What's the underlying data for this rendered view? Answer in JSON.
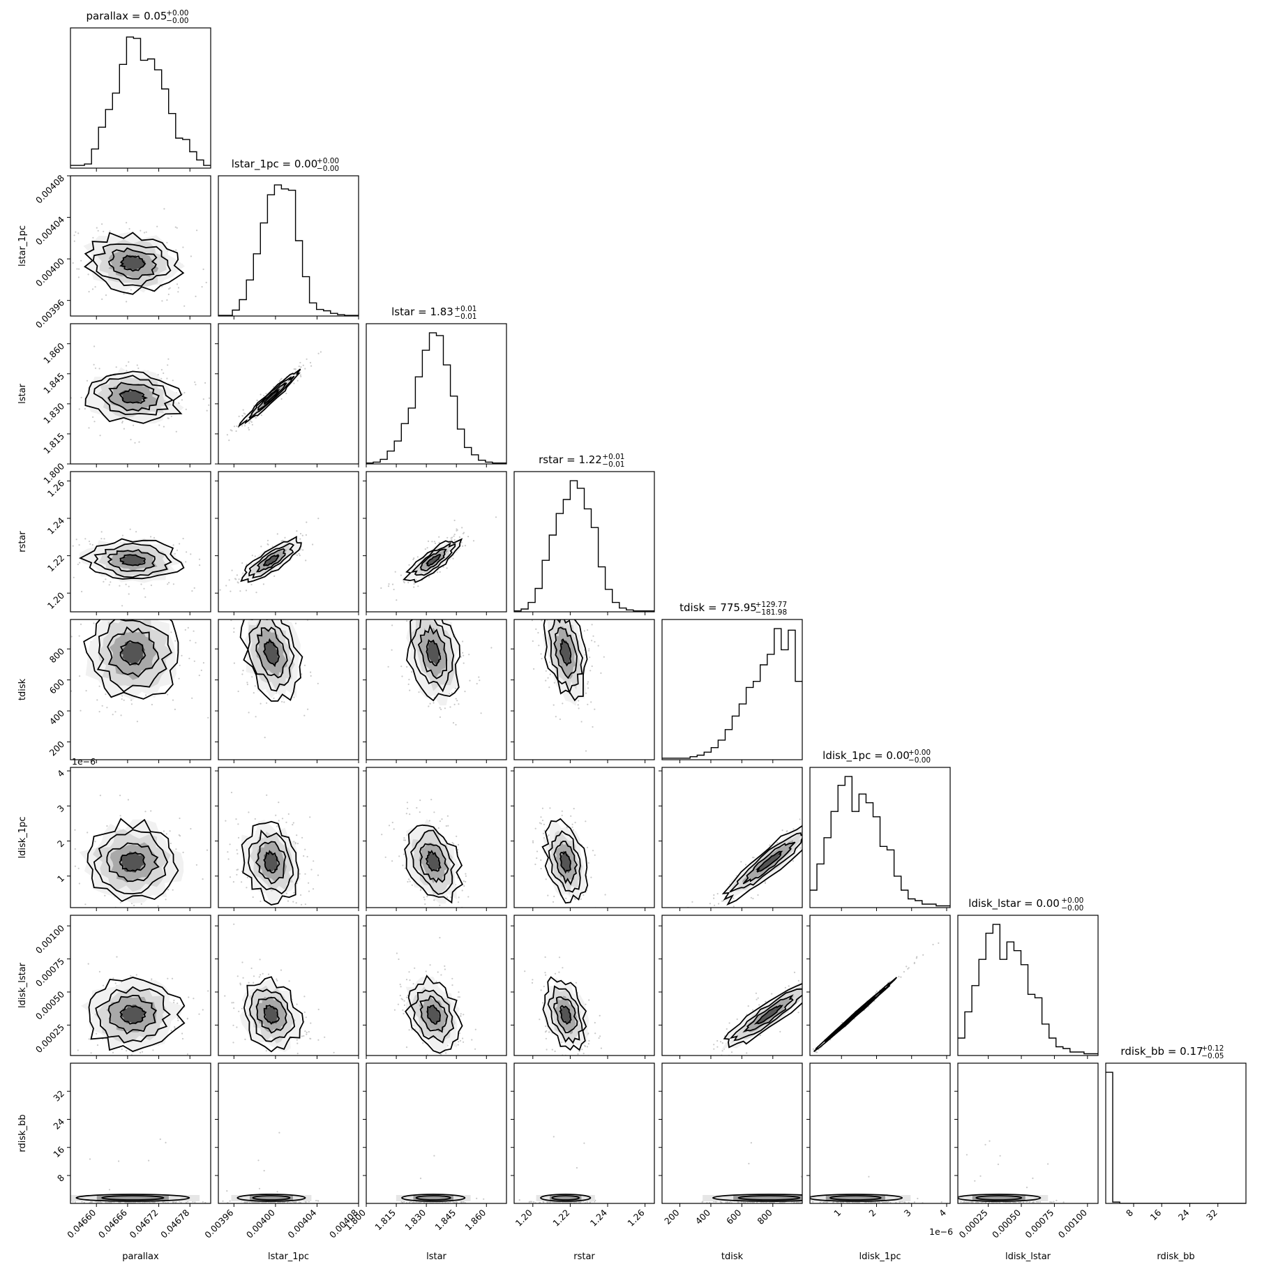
{
  "chart_data": {
    "type": "corner",
    "variables": [
      {
        "name": "parallax",
        "median": 0.04667,
        "sigma": 4.5e-05,
        "range": [
          0.04655,
          0.04682
        ],
        "ticks": [
          0.0466,
          0.04666,
          0.04672,
          0.04678
        ],
        "tick_labels": [
          "0.04660",
          "0.04666",
          "0.04672",
          "0.04678"
        ],
        "title": "parallax = 0.05",
        "title_plus": "+0.00",
        "title_minus": "−0.00",
        "offset_label": ""
      },
      {
        "name": "lstar_1pc",
        "median": 0.003996,
        "sigma": 1.35e-05,
        "range": [
          0.003945,
          0.00408
        ],
        "ticks": [
          0.00396,
          0.004,
          0.00404,
          0.00408
        ],
        "tick_labels": [
          "0.00396",
          "0.00400",
          "0.00404",
          "0.00408"
        ],
        "title": "lstar_1pc = 0.00",
        "title_plus": "+0.00",
        "title_minus": "−0.00",
        "offset_label": ""
      },
      {
        "name": "lstar",
        "median": 1.8335,
        "sigma": 0.0065,
        "range": [
          1.8,
          1.87
        ],
        "ticks": [
          1.8,
          1.815,
          1.83,
          1.845,
          1.86
        ],
        "tick_labels": [
          "1.800",
          "1.815",
          "1.830",
          "1.845",
          "1.860"
        ],
        "title": "lstar = 1.83",
        "title_plus": "+0.01",
        "title_minus": "−0.01",
        "offset_label": ""
      },
      {
        "name": "rstar",
        "median": 1.2175,
        "sigma": 0.0055,
        "range": [
          1.19,
          1.265
        ],
        "ticks": [
          1.2,
          1.22,
          1.24,
          1.26
        ],
        "tick_labels": [
          "1.20",
          "1.22",
          "1.24",
          "1.26"
        ],
        "title": "rstar = 1.22",
        "title_plus": "+0.01",
        "title_minus": "−0.01",
        "offset_label": ""
      },
      {
        "name": "tdisk",
        "median": 775.95,
        "sigma": 150,
        "range": [
          85,
          990
        ],
        "ticks": [
          200,
          400,
          600,
          800
        ],
        "tick_labels": [
          "200",
          "400",
          "600",
          "800"
        ],
        "title": "tdisk = 775.95",
        "title_plus": "+129.77",
        "title_minus": "−181.98",
        "offset_label": ""
      },
      {
        "name": "ldisk_1pc",
        "median": 1.4e-06,
        "sigma": 5.5e-07,
        "range": [
          1e-07,
          4.1e-06
        ],
        "ticks": [
          1e-06,
          2e-06,
          3e-06,
          4e-06
        ],
        "tick_labels": [
          "1",
          "2",
          "3",
          "4"
        ],
        "title": "ldisk_1pc = 0.00",
        "title_plus": "+0.00",
        "title_minus": "−0.00",
        "offset_label": "1e−6"
      },
      {
        "name": "ldisk_lstar",
        "median": 0.00033,
        "sigma": 0.00013,
        "range": [
          2e-05,
          0.00108
        ],
        "ticks": [
          0.00025,
          0.0005,
          0.00075,
          0.001
        ],
        "tick_labels": [
          "0.00025",
          "0.00050",
          "0.00075",
          "0.00100"
        ],
        "title": "ldisk_lstar = 0.00",
        "title_plus": "+0.00",
        "title_minus": "−0.00",
        "offset_label": ""
      },
      {
        "name": "rdisk_bb",
        "median": 0.17,
        "sigma": 0.08,
        "range": [
          0.05,
          40
        ],
        "ticks": [
          8,
          16,
          24,
          32
        ],
        "tick_labels": [
          "8",
          "16",
          "24",
          "32"
        ],
        "title": "rdisk_bb = 0.17",
        "title_plus": "+0.12",
        "title_minus": "−0.05",
        "offset_label": ""
      }
    ],
    "correlations": {
      "1-0": -0.1,
      "2-0": -0.15,
      "2-1": 0.97,
      "3-0": -0.1,
      "3-1": 0.8,
      "3-2": 0.82,
      "4-0": 0.0,
      "4-1": -0.3,
      "4-2": -0.3,
      "4-3": -0.35,
      "5-0": 0.0,
      "5-1": -0.2,
      "5-2": -0.3,
      "5-3": -0.35,
      "5-4": 0.92,
      "6-0": 0.0,
      "6-1": -0.2,
      "6-2": -0.3,
      "6-3": -0.35,
      "6-4": 0.92,
      "6-5": 0.998
    },
    "histogram_counts": [
      [
        2,
        2,
        3,
        14,
        30,
        43,
        55,
        76,
        96,
        95,
        79,
        80,
        72,
        58,
        40,
        22,
        21,
        12,
        6,
        2
      ],
      [
        1,
        1,
        9,
        25,
        55,
        95,
        142,
        185,
        200,
        194,
        192,
        115,
        60,
        20,
        10,
        8,
        4,
        2,
        1,
        1
      ],
      [
        1,
        2,
        5,
        14,
        25,
        44,
        61,
        95,
        124,
        143,
        140,
        108,
        74,
        38,
        18,
        10,
        4,
        2,
        1,
        1
      ],
      [
        1,
        3,
        10,
        25,
        55,
        82,
        105,
        120,
        140,
        132,
        110,
        90,
        48,
        24,
        10,
        4,
        2,
        1,
        1,
        1
      ],
      [
        1,
        1,
        1,
        1,
        2,
        3,
        5,
        8,
        13,
        20,
        29,
        37,
        48,
        52,
        63,
        70,
        87,
        73,
        86,
        52
      ],
      [
        10,
        25,
        40,
        55,
        70,
        75,
        55,
        65,
        60,
        52,
        35,
        33,
        18,
        10,
        5,
        4,
        2,
        2,
        1,
        1
      ],
      [
        10,
        25,
        40,
        55,
        70,
        75,
        55,
        65,
        60,
        52,
        35,
        33,
        18,
        10,
        5,
        4,
        2,
        2,
        1,
        1
      ],
      [
        99,
        1,
        0,
        0,
        0,
        0,
        0,
        0,
        0,
        0,
        0,
        0,
        0,
        0,
        0,
        0,
        0,
        0,
        0,
        0
      ]
    ]
  }
}
